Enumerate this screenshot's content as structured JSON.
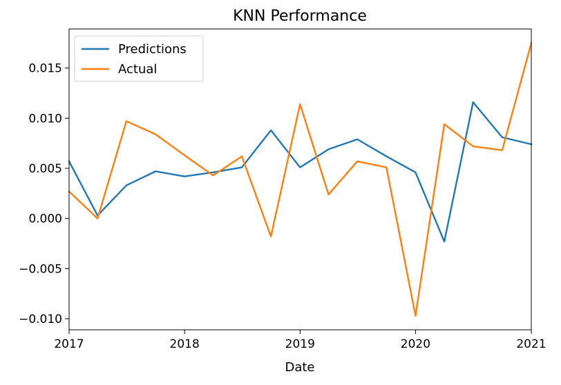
{
  "chart_data": {
    "type": "line",
    "title": "KNN Performance",
    "xlabel": "Date",
    "ylabel": "",
    "x": [
      "2017-01-01",
      "2017-04-01",
      "2017-07-01",
      "2017-10-01",
      "2018-01-01",
      "2018-04-01",
      "2018-07-01",
      "2018-10-01",
      "2019-01-01",
      "2019-04-01",
      "2019-07-01",
      "2019-10-01",
      "2020-01-01",
      "2020-04-01",
      "2020-07-01",
      "2020-10-01",
      "2021-01-01"
    ],
    "series": [
      {
        "name": "Predictions",
        "color": "#1f77b4",
        "values": [
          0.0057,
          0.0003,
          0.0033,
          0.0047,
          0.0042,
          0.0046,
          0.0051,
          0.0088,
          0.0051,
          0.0069,
          0.0079,
          0.0062,
          0.0046,
          -0.0023,
          0.0116,
          0.0081,
          0.0074
        ]
      },
      {
        "name": "Actual",
        "color": "#ff7f0e",
        "values": [
          0.0027,
          0.0,
          0.0097,
          0.0084,
          0.0063,
          0.0043,
          0.0062,
          -0.0018,
          0.0114,
          0.0024,
          0.0057,
          0.0051,
          -0.0097,
          0.0094,
          0.0072,
          0.0068,
          0.0175
        ]
      }
    ],
    "xlim": [
      "2017-01-01",
      "2021-01-01"
    ],
    "ylim": [
      -0.0111,
      0.0189
    ],
    "x_ticks": [
      {
        "value": "2017-01-01",
        "label": "2017"
      },
      {
        "value": "2018-01-01",
        "label": "2018"
      },
      {
        "value": "2019-01-01",
        "label": "2019"
      },
      {
        "value": "2020-01-01",
        "label": "2020"
      },
      {
        "value": "2021-01-01",
        "label": "2021"
      }
    ],
    "y_ticks": [
      {
        "value": 0.015,
        "label": "0.015"
      },
      {
        "value": 0.01,
        "label": "0.010"
      },
      {
        "value": 0.005,
        "label": "0.005"
      },
      {
        "value": 0.0,
        "label": "0.000"
      },
      {
        "value": -0.005,
        "label": "−0.005"
      },
      {
        "value": -0.01,
        "label": "−0.010"
      }
    ],
    "grid": false,
    "legend_position": "upper-left"
  }
}
